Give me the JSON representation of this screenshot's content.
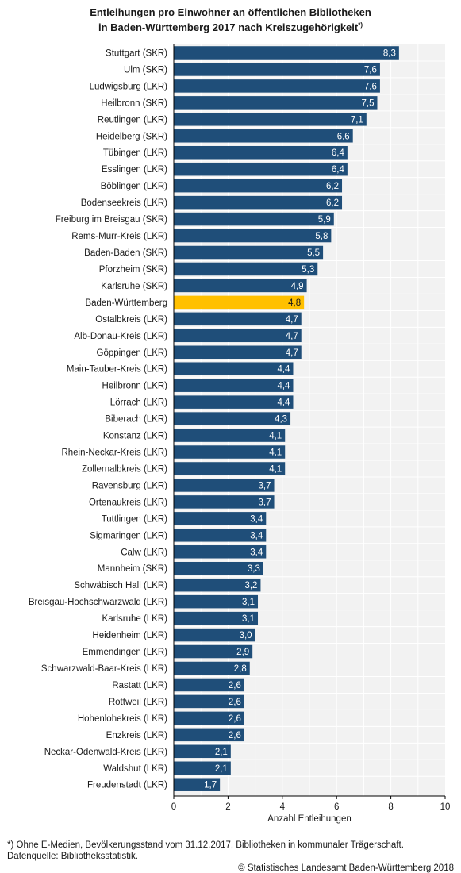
{
  "title": {
    "line1": "Entleihungen pro Einwohner an öffentlichen Bibliotheken",
    "line2": "in Baden-Württemberg 2017 nach Kreiszugehörigkeit",
    "marker": "*)"
  },
  "chart_data": {
    "type": "bar",
    "orientation": "horizontal",
    "xlabel": "Anzahl Entleihungen",
    "xlim": [
      0,
      10
    ],
    "xticks": [
      0,
      2,
      4,
      6,
      8,
      10
    ],
    "grid": true,
    "bar_color": "#1f4e79",
    "highlight_color": "#ffc000",
    "highlight_category": "Baden-Württemberg",
    "categories": [
      "Stuttgart (SKR)",
      "Ulm (SKR)",
      "Ludwigsburg (LKR)",
      "Heilbronn (SKR)",
      "Reutlingen (LKR)",
      "Heidelberg (SKR)",
      "Tübingen (LKR)",
      "Esslingen (LKR)",
      "Böblingen (LKR)",
      "Bodenseekreis (LKR)",
      "Freiburg im Breisgau (SKR)",
      "Rems-Murr-Kreis (LKR)",
      "Baden-Baden (SKR)",
      "Pforzheim (SKR)",
      "Karlsruhe (SKR)",
      "Baden-Württemberg",
      "Ostalbkreis (LKR)",
      "Alb-Donau-Kreis (LKR)",
      "Göppingen (LKR)",
      "Main-Tauber-Kreis (LKR)",
      "Heilbronn (LKR)",
      "Lörrach (LKR)",
      "Biberach (LKR)",
      "Konstanz (LKR)",
      "Rhein-Neckar-Kreis (LKR)",
      "Zollernalbkreis (LKR)",
      "Ravensburg (LKR)",
      "Ortenaukreis (LKR)",
      "Tuttlingen (LKR)",
      "Sigmaringen (LKR)",
      "Calw (LKR)",
      "Mannheim (SKR)",
      "Schwäbisch Hall (LKR)",
      "Breisgau-Hochschwarzwald (LKR)",
      "Karlsruhe (LKR)",
      "Heidenheim (LKR)",
      "Emmendingen (LKR)",
      "Schwarzwald-Baar-Kreis (LKR)",
      "Rastatt (LKR)",
      "Rottweil (LKR)",
      "Hohenlohekreis (LKR)",
      "Enzkreis (LKR)",
      "Neckar-Odenwald-Kreis (LKR)",
      "Waldshut (LKR)",
      "Freudenstadt (LKR)"
    ],
    "values": [
      8.3,
      7.6,
      7.6,
      7.5,
      7.1,
      6.6,
      6.4,
      6.4,
      6.2,
      6.2,
      5.9,
      5.8,
      5.5,
      5.3,
      4.9,
      4.8,
      4.7,
      4.7,
      4.7,
      4.4,
      4.4,
      4.4,
      4.3,
      4.1,
      4.1,
      4.1,
      3.7,
      3.7,
      3.4,
      3.4,
      3.4,
      3.3,
      3.2,
      3.1,
      3.1,
      3.0,
      2.9,
      2.8,
      2.6,
      2.6,
      2.6,
      2.6,
      2.1,
      2.1,
      1.7
    ],
    "value_labels": [
      "8,3",
      "7,6",
      "7,6",
      "7,5",
      "7,1",
      "6,6",
      "6,4",
      "6,4",
      "6,2",
      "6,2",
      "5,9",
      "5,8",
      "5,5",
      "5,3",
      "4,9",
      "4,8",
      "4,7",
      "4,7",
      "4,7",
      "4,4",
      "4,4",
      "4,4",
      "4,3",
      "4,1",
      "4,1",
      "4,1",
      "3,7",
      "3,7",
      "3,4",
      "3,4",
      "3,4",
      "3,3",
      "3,2",
      "3,1",
      "3,1",
      "3,0",
      "2,9",
      "2,8",
      "2,6",
      "2,6",
      "2,6",
      "2,6",
      "2,1",
      "2,1",
      "1,7"
    ]
  },
  "footnote": {
    "line1": "*) Ohne E-Medien, Bevölkerungsstand vom 31.12.2017, Bibliotheken in kommunaler Trägerschaft.",
    "line2": "Datenquelle: Bibliotheksstatistik."
  },
  "copyright": "© Statistisches Landesamt Baden-Württemberg 2018"
}
